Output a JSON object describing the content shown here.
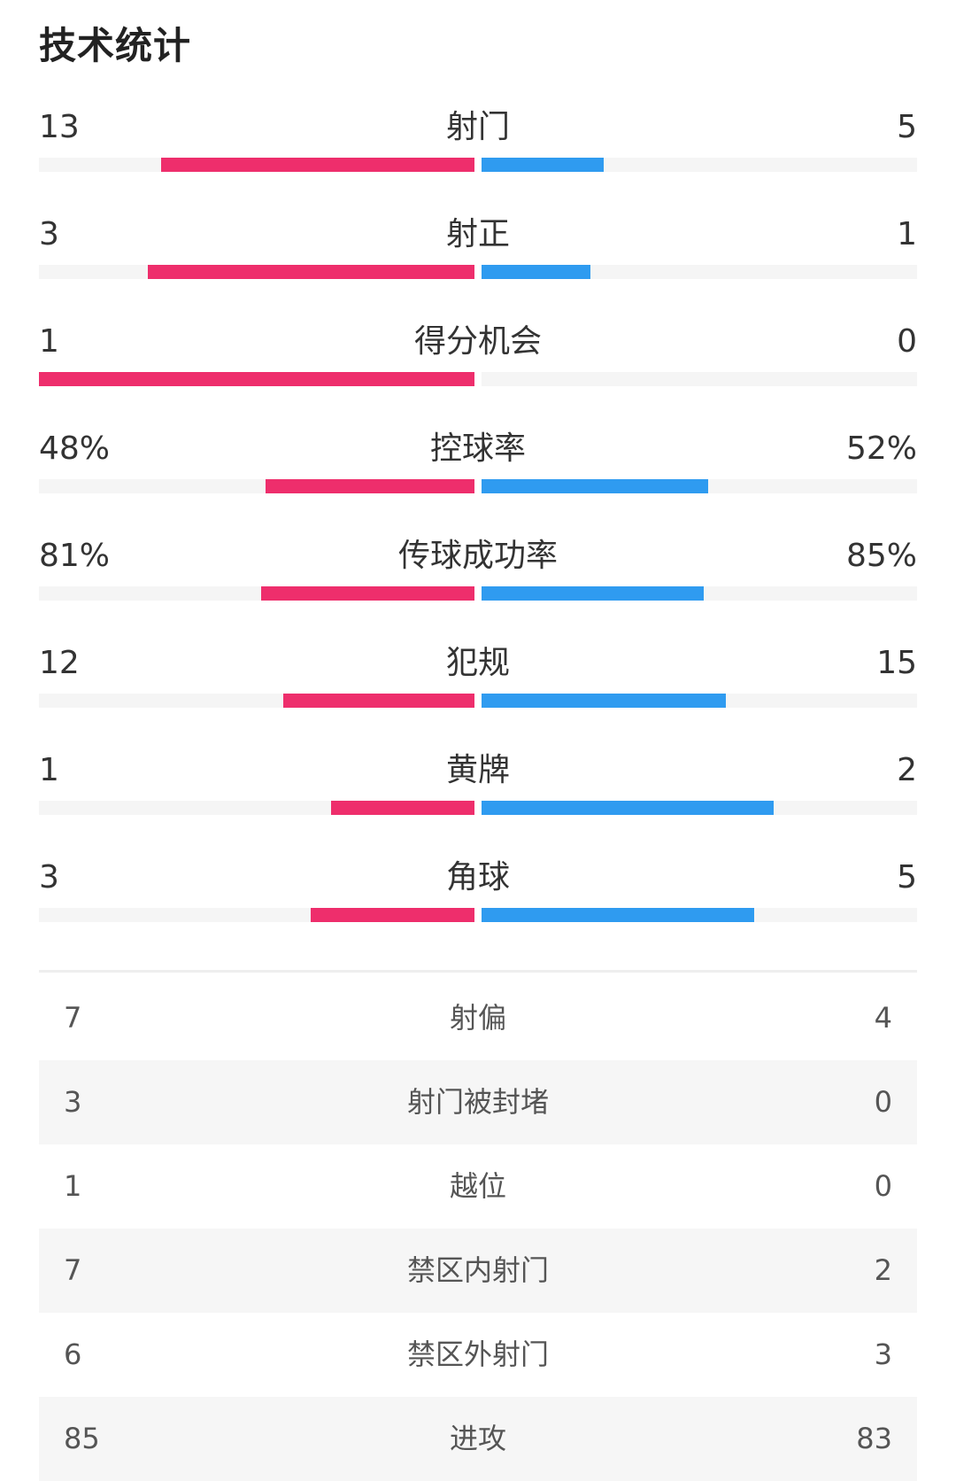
{
  "title": "技术统计",
  "colors": {
    "home": "#ee2e6c",
    "away": "#2f9bf0",
    "track": "#f5f5f5"
  },
  "bar_stats": [
    {
      "label": "射门",
      "home": "13",
      "away": "5",
      "home_share": 0.72,
      "away_share": 0.28
    },
    {
      "label": "射正",
      "home": "3",
      "away": "1",
      "home_share": 0.75,
      "away_share": 0.25
    },
    {
      "label": "得分机会",
      "home": "1",
      "away": "0",
      "home_share": 1.0,
      "away_share": 0.0
    },
    {
      "label": "控球率",
      "home": "48%",
      "away": "52%",
      "home_share": 0.48,
      "away_share": 0.52
    },
    {
      "label": "传球成功率",
      "home": "81%",
      "away": "85%",
      "home_share": 0.49,
      "away_share": 0.51
    },
    {
      "label": "犯规",
      "home": "12",
      "away": "15",
      "home_share": 0.44,
      "away_share": 0.56
    },
    {
      "label": "黄牌",
      "home": "1",
      "away": "2",
      "home_share": 0.33,
      "away_share": 0.67
    },
    {
      "label": "角球",
      "home": "3",
      "away": "5",
      "home_share": 0.375,
      "away_share": 0.625
    }
  ],
  "table_stats": [
    {
      "label": "射偏",
      "home": "7",
      "away": "4"
    },
    {
      "label": "射门被封堵",
      "home": "3",
      "away": "0"
    },
    {
      "label": "越位",
      "home": "1",
      "away": "0"
    },
    {
      "label": "禁区内射门",
      "home": "7",
      "away": "2"
    },
    {
      "label": "禁区外射门",
      "home": "6",
      "away": "3"
    },
    {
      "label": "进攻",
      "home": "85",
      "away": "83"
    }
  ]
}
